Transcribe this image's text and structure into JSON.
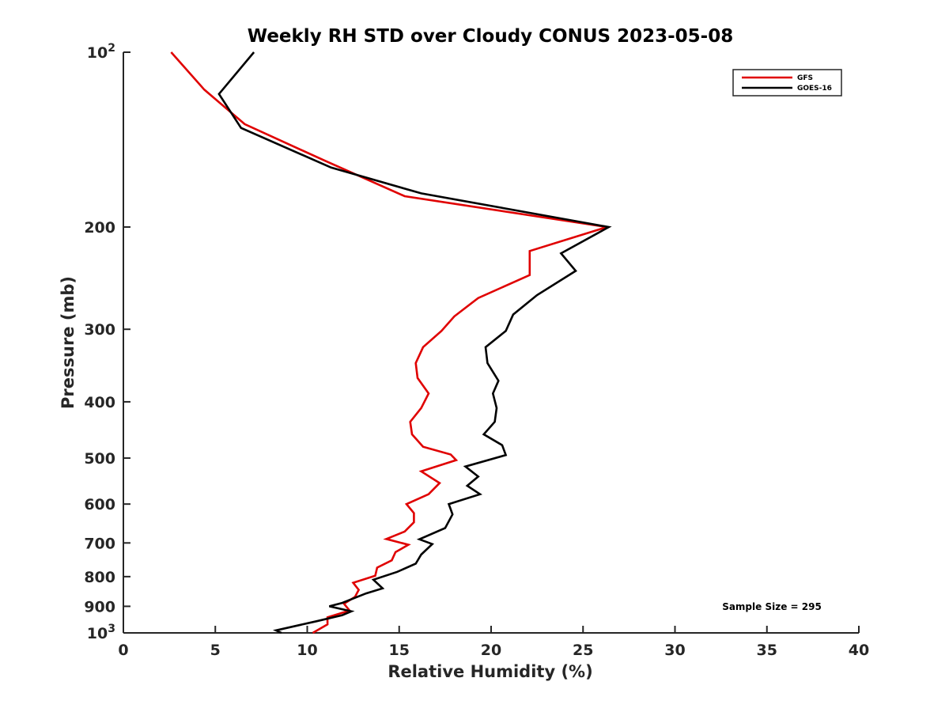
{
  "chart_data": {
    "type": "line",
    "title": "Weekly RH STD over Cloudy CONUS 2023-05-08",
    "xlabel": "Relative Humidity (%)",
    "ylabel": "Pressure (mb)",
    "xlim": [
      0,
      40
    ],
    "ylim": [
      100,
      1000
    ],
    "y_scale": "log",
    "y_reversed": true,
    "grid": false,
    "legend_position": "top-right",
    "x_ticks": [
      "0",
      "5",
      "10",
      "15",
      "20",
      "25",
      "30",
      "35",
      "40"
    ],
    "y_ticks": [
      {
        "value": 100,
        "base": "10",
        "exp": "2"
      },
      {
        "value": 200,
        "label": "200"
      },
      {
        "value": 300,
        "label": "300"
      },
      {
        "value": 400,
        "label": "400"
      },
      {
        "value": 500,
        "label": "500"
      },
      {
        "value": 600,
        "label": "600"
      },
      {
        "value": 700,
        "label": "700"
      },
      {
        "value": 800,
        "label": "800"
      },
      {
        "value": 900,
        "label": "900"
      },
      {
        "value": 1000,
        "base": "10",
        "exp": "3"
      }
    ],
    "annotation": "Sample Size = 295",
    "series": [
      {
        "name": "GFS",
        "color": "#e00000",
        "points": [
          [
            2.6,
            100
          ],
          [
            4.4,
            116
          ],
          [
            6.6,
            133
          ],
          [
            11,
            154
          ],
          [
            15.3,
            177
          ],
          [
            26.3,
            200
          ],
          [
            22.1,
            220
          ],
          [
            22.1,
            242
          ],
          [
            19.3,
            265
          ],
          [
            18,
            285
          ],
          [
            17.3,
            302
          ],
          [
            16.3,
            322
          ],
          [
            15.9,
            343
          ],
          [
            16,
            364
          ],
          [
            16.6,
            387
          ],
          [
            16.2,
            410
          ],
          [
            15.6,
            433
          ],
          [
            15.7,
            455
          ],
          [
            16.3,
            478
          ],
          [
            17.8,
            493
          ],
          [
            18.1,
            504
          ],
          [
            16.2,
            527
          ],
          [
            17.2,
            552
          ],
          [
            16.6,
            577
          ],
          [
            15.4,
            600
          ],
          [
            15.8,
            622
          ],
          [
            15.8,
            645
          ],
          [
            15.3,
            669
          ],
          [
            14.3,
            689
          ],
          [
            15.5,
            705
          ],
          [
            14.8,
            726
          ],
          [
            14.6,
            750
          ],
          [
            13.8,
            772
          ],
          [
            13.7,
            797
          ],
          [
            12.5,
            820
          ],
          [
            12.8,
            843
          ],
          [
            12.6,
            867
          ],
          [
            12,
            891
          ],
          [
            12.3,
            915
          ],
          [
            11.1,
            940
          ],
          [
            11.1,
            967
          ],
          [
            10.3,
            1000
          ]
        ]
      },
      {
        "name": "GOES-16",
        "color": "#000000",
        "points": [
          [
            7.1,
            100
          ],
          [
            5.2,
            118
          ],
          [
            6.4,
            135
          ],
          [
            11.3,
            158
          ],
          [
            16.2,
            175
          ],
          [
            26.4,
            200
          ],
          [
            23.8,
            222
          ],
          [
            24.6,
            238
          ],
          [
            22.5,
            262
          ],
          [
            21.2,
            283
          ],
          [
            20.8,
            302
          ],
          [
            19.7,
            322
          ],
          [
            19.8,
            343
          ],
          [
            20.4,
            368
          ],
          [
            20.1,
            387
          ],
          [
            20.3,
            410
          ],
          [
            20.2,
            433
          ],
          [
            19.6,
            455
          ],
          [
            20.6,
            475
          ],
          [
            20.8,
            494
          ],
          [
            18.6,
            517
          ],
          [
            19.3,
            538
          ],
          [
            18.7,
            558
          ],
          [
            19.4,
            577
          ],
          [
            17.7,
            600
          ],
          [
            17.9,
            625
          ],
          [
            17.5,
            660
          ],
          [
            16.1,
            690
          ],
          [
            16.8,
            703
          ],
          [
            16.2,
            733
          ],
          [
            15.9,
            760
          ],
          [
            14.9,
            785
          ],
          [
            13.6,
            810
          ],
          [
            14.1,
            838
          ],
          [
            13.2,
            855
          ],
          [
            11.9,
            888
          ],
          [
            11.2,
            900
          ],
          [
            12.4,
            918
          ],
          [
            11.9,
            932
          ],
          [
            10.5,
            955
          ],
          [
            8.3,
            990
          ],
          [
            8.6,
            1000
          ]
        ]
      }
    ]
  }
}
